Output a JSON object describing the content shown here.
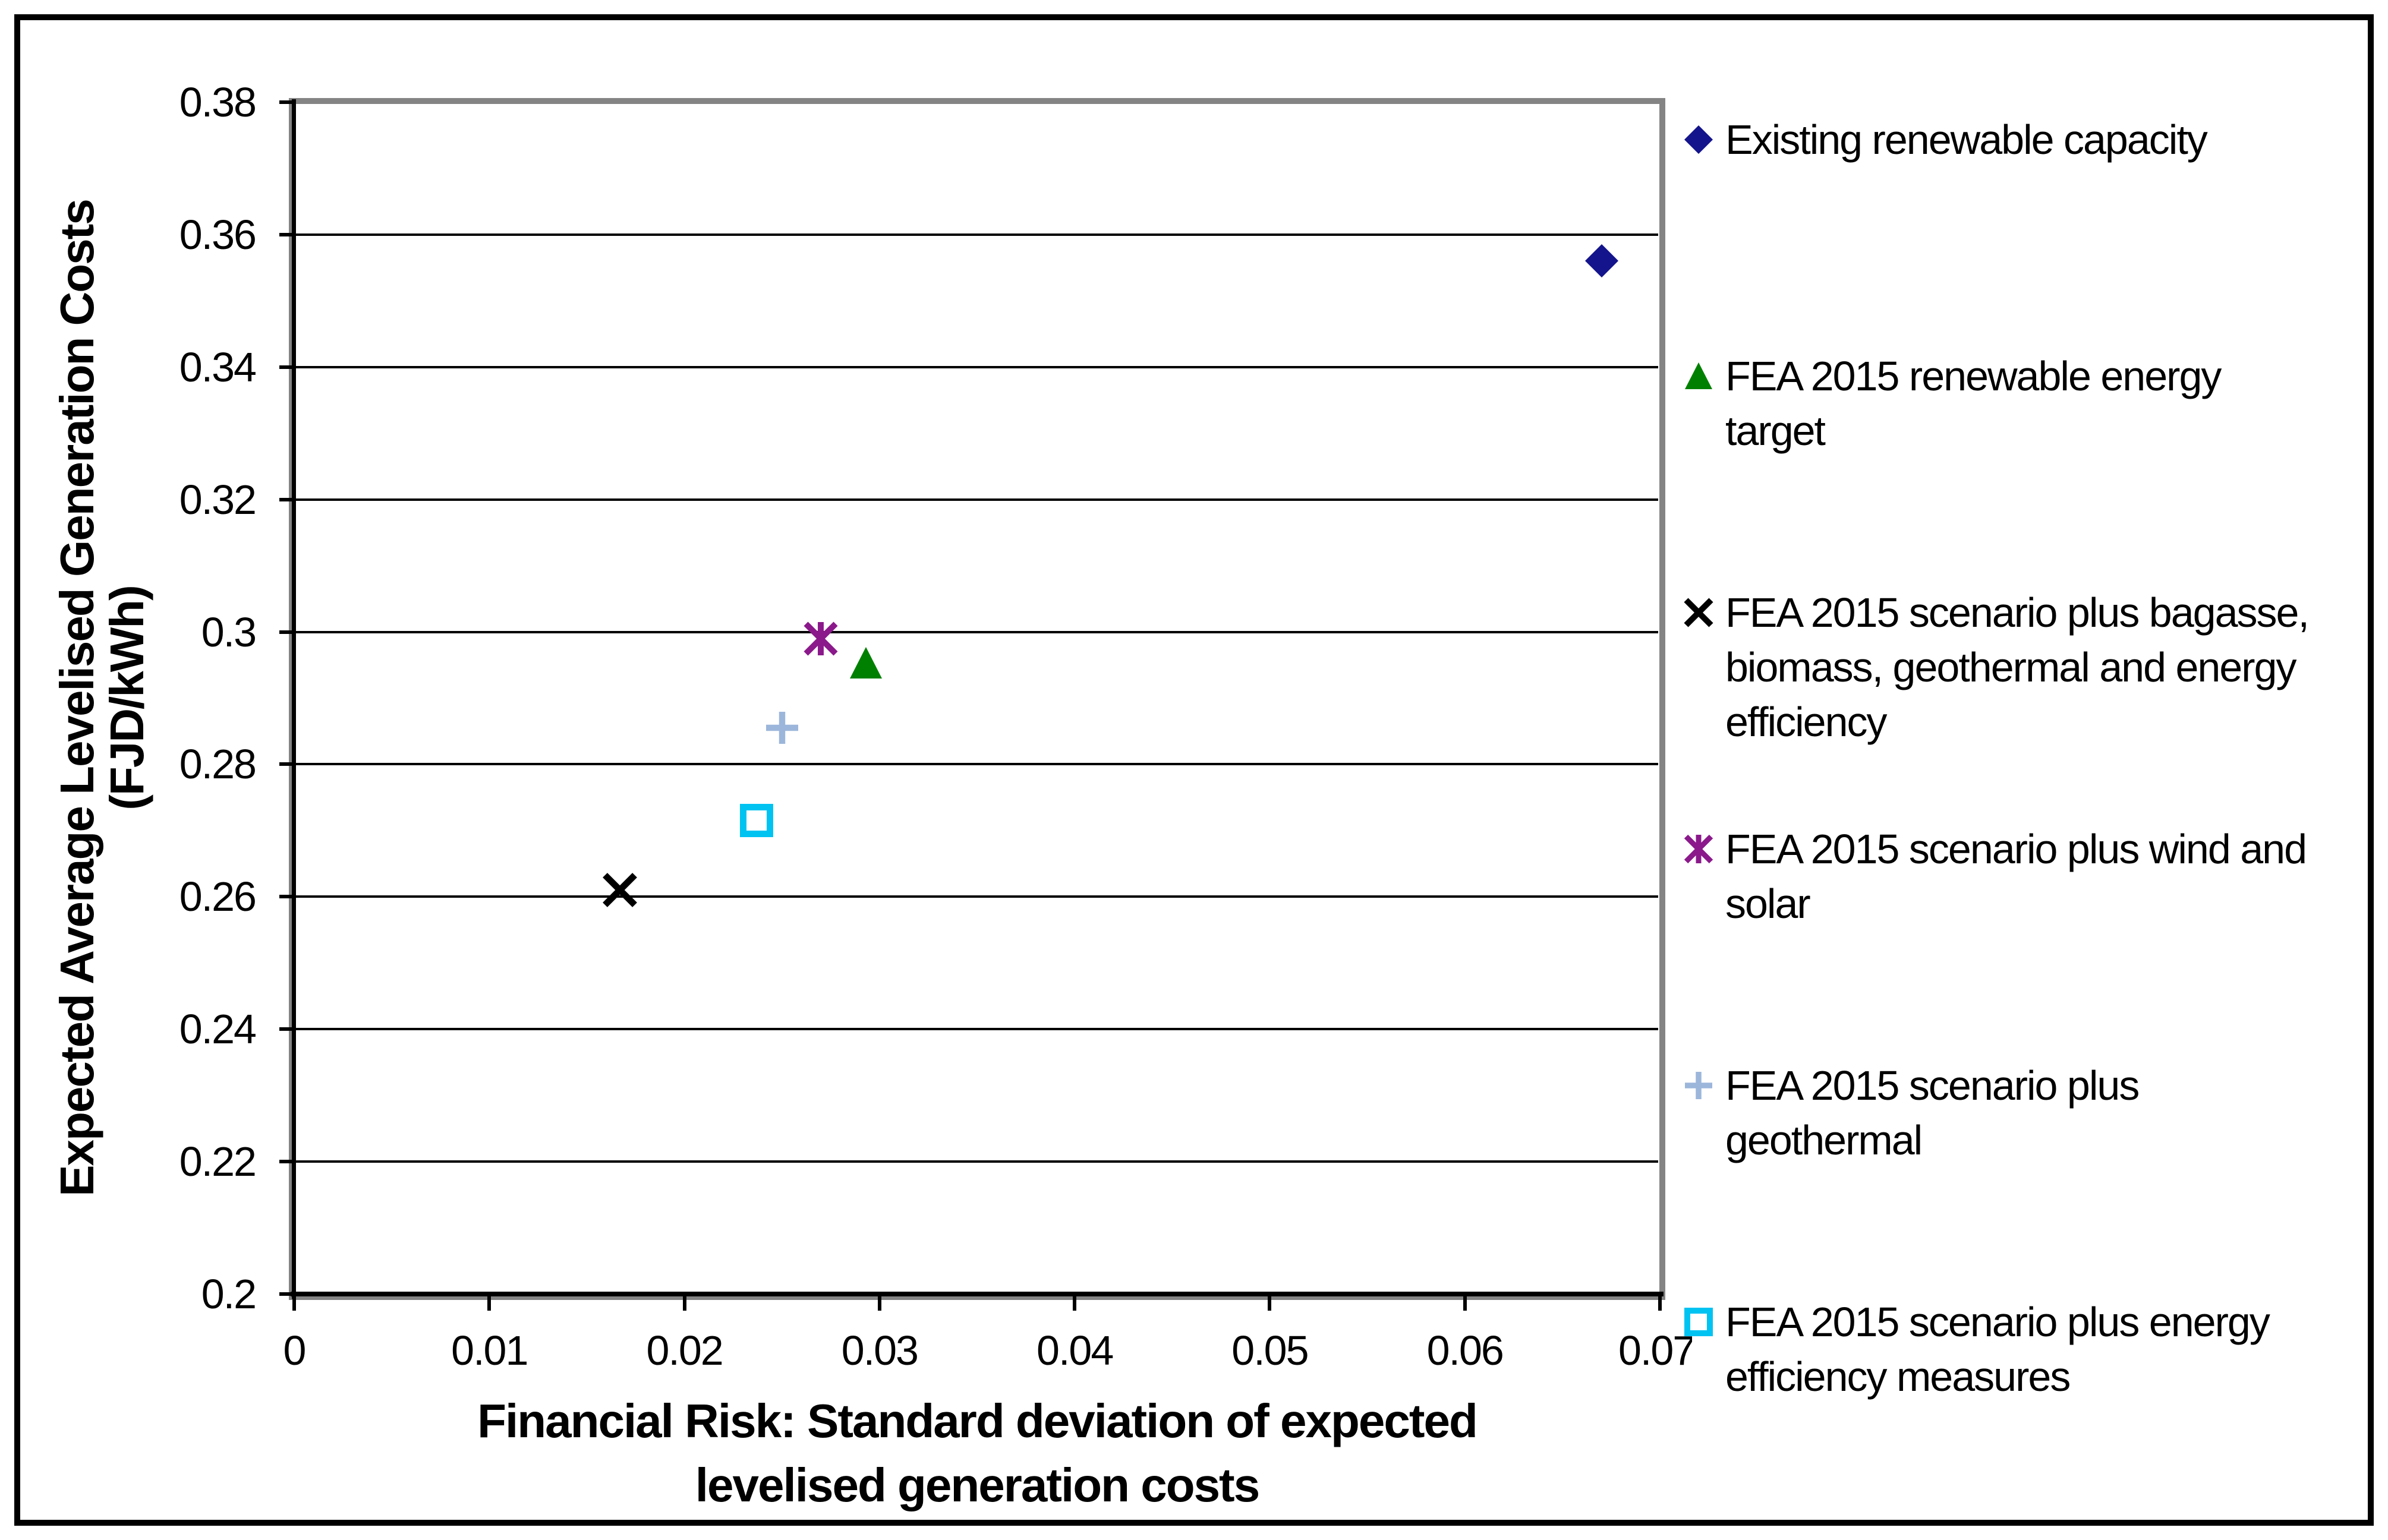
{
  "chart_data": {
    "type": "scatter",
    "xlabel": "Financial Risk: Standard deviation of expected levelised generation costs",
    "xlabel_line1": "Financial Risk: Standard deviation of expected",
    "xlabel_line2": "levelised generation costs",
    "ylabel": "Expected Average Levelised Generation Costs (FJD/kWh)",
    "xlim": [
      0,
      0.07
    ],
    "ylim": [
      0.2,
      0.38
    ],
    "grid": "horizontal-only",
    "legend_position": "right",
    "plot_border_color": "#848484",
    "x_ticks": {
      "values": [
        0,
        0.01,
        0.02,
        0.03,
        0.04,
        0.05,
        0.06,
        0.07
      ],
      "labels": [
        "0",
        "0.01",
        "0.02",
        "0.03",
        "0.04",
        "0.05",
        "0.06",
        "0.07"
      ],
      "last_label_clipped_to": "0.0"
    },
    "y_ticks": {
      "values": [
        0.38,
        0.36,
        0.34,
        0.32,
        0.3,
        0.28,
        0.26,
        0.24,
        0.22,
        0.2
      ],
      "labels": [
        "0.38",
        "0.36",
        "0.34",
        "0.32",
        "0.3",
        "0.28",
        "0.26",
        "0.24",
        "0.22",
        "0.2"
      ]
    },
    "series": [
      {
        "name": "Existing renewable capacity",
        "marker": "diamond",
        "color": "#14148C",
        "x": 0.067,
        "y": 0.356
      },
      {
        "name": "FEA 2015 renewable energy target",
        "marker": "triangle",
        "color": "#008000",
        "x": 0.0293,
        "y": 0.2953
      },
      {
        "name": "FEA 2015 scenario plus bagasse, biomass, geothermal and energy efficiency",
        "marker": "x",
        "color": "#000000",
        "x": 0.0167,
        "y": 0.261
      },
      {
        "name": "FEA 2015 scenario plus wind and solar",
        "marker": "asterisk",
        "color": "#8B198B",
        "x": 0.027,
        "y": 0.299
      },
      {
        "name": "FEA 2015 scenario plus geothermal",
        "marker": "plus",
        "color": "#9CB6DB",
        "x": 0.025,
        "y": 0.2855
      },
      {
        "name": "FEA 2015 scenario plus energy efficiency measures",
        "marker": "square-open",
        "color": "#00C3F2",
        "x": 0.0237,
        "y": 0.2715
      }
    ]
  },
  "legend": {
    "items": [
      {
        "marker": "diamond",
        "color": "#14148C",
        "lines": [
          "Existing renewable capacity"
        ]
      },
      {
        "marker": "triangle",
        "color": "#008000",
        "lines": [
          "FEA 2015 renewable energy",
          "target"
        ]
      },
      {
        "marker": "x",
        "color": "#000000",
        "lines": [
          "FEA 2015 scenario plus bagasse,",
          "biomass, geothermal and energy",
          "efficiency"
        ]
      },
      {
        "marker": "asterisk",
        "color": "#8B198B",
        "lines": [
          "FEA 2015 scenario plus wind and",
          "solar"
        ]
      },
      {
        "marker": "plus",
        "color": "#9CB6DB",
        "lines": [
          "FEA 2015 scenario plus",
          "geothermal"
        ]
      },
      {
        "marker": "square-open",
        "color": "#00C3F2",
        "lines": [
          "FEA 2015 scenario plus energy",
          "efficiency measures"
        ]
      }
    ]
  }
}
